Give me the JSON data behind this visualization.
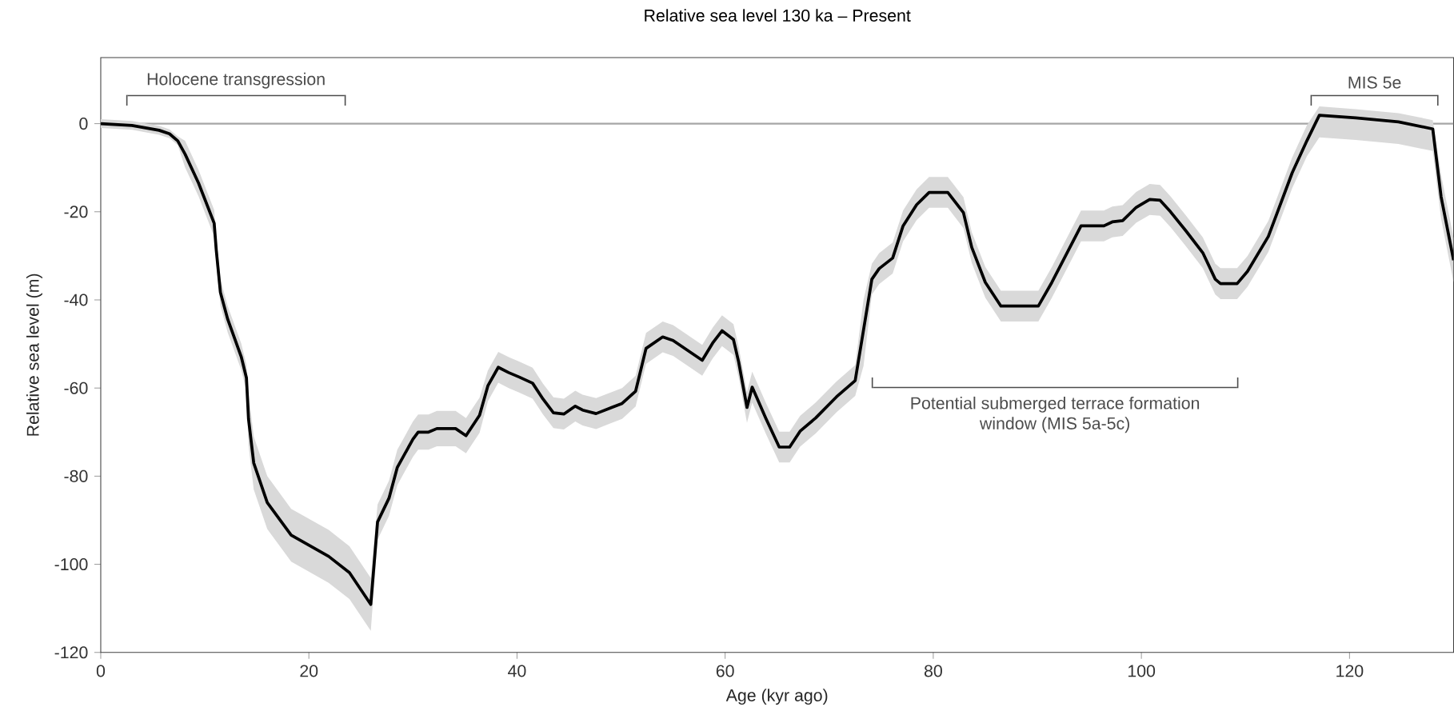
{
  "chart_data": {
    "type": "line",
    "title": "Relative sea level 130 ka – Present",
    "xlabel": "Age (kyr ago)",
    "ylabel": "Relative sea level (m)",
    "xlim": [
      0,
      130
    ],
    "ylim": [
      -120,
      15
    ],
    "xticks": [
      0,
      20,
      40,
      60,
      80,
      100,
      120
    ],
    "yticks": [
      -120,
      -100,
      -80,
      -60,
      -40,
      -20,
      0
    ],
    "x": [
      0,
      3,
      5.6,
      6.6,
      7.4,
      8.1,
      9.4,
      10.9,
      11.1,
      11.5,
      12.2,
      13.5,
      14,
      14.2,
      14.7,
      16,
      18.3,
      21.9,
      23.9,
      25.95,
      26.6,
      27.7,
      28.5,
      30,
      30.5,
      31.5,
      32.3,
      34.1,
      35.1,
      36.4,
      37.2,
      38.2,
      39.2,
      40.2,
      41.5,
      42.5,
      43.5,
      44.5,
      45.6,
      46.3,
      47.6,
      48.9,
      50.1,
      51.4,
      52.4,
      54,
      55,
      57.8,
      58.8,
      59.7,
      60.8,
      61.3,
      62.1,
      62.6,
      63.9,
      65.2,
      66.2,
      67.2,
      68.7,
      70.7,
      72.5,
      73.3,
      74.1,
      74.8,
      76.1,
      77.1,
      78.4,
      79.6,
      81.4,
      82.9,
      83.7,
      85,
      86.5,
      90.1,
      91.4,
      94.2,
      96.4,
      97.2,
      98.2,
      99.5,
      100.8,
      101.8,
      102.8,
      104.3,
      105.9,
      107.1,
      107.6,
      109.2,
      110.2,
      112.2,
      114.5,
      115.9,
      117.1,
      120.6,
      124.7,
      128,
      128.8,
      130
    ],
    "series": [
      {
        "color": "#000000",
        "values": [
          0,
          -0.4,
          -1.5,
          -2.3,
          -3.9,
          -6.9,
          -13.5,
          -22.6,
          -28.7,
          -38.3,
          -44.4,
          -52.9,
          -57.7,
          -67,
          -77,
          -86,
          -93.4,
          -98.2,
          -101.9,
          -109.1,
          -90.4,
          -85,
          -78,
          -71.6,
          -70,
          -70,
          -69.2,
          -69.2,
          -70.8,
          -66.2,
          -59.5,
          -55.3,
          -56.5,
          -57.5,
          -58.9,
          -62.5,
          -65.6,
          -65.9,
          -64.1,
          -65,
          -65.8,
          -64.6,
          -63.5,
          -60.7,
          -51,
          -48.4,
          -49.2,
          -53.7,
          -49.8,
          -47,
          -49,
          -54.1,
          -64.4,
          -59.8,
          -66.8,
          -73.4,
          -73.4,
          -69.8,
          -66.8,
          -62,
          -58.3,
          -46.8,
          -35.3,
          -32.9,
          -30.5,
          -23.2,
          -18.4,
          -15.6,
          -15.6,
          -20.2,
          -28.1,
          -36,
          -41.4,
          -41.4,
          -36,
          -23.2,
          -23.2,
          -22.3,
          -22,
          -19,
          -17.2,
          -17.4,
          -20,
          -24.4,
          -29.3,
          -35.3,
          -36.3,
          -36.3,
          -33.5,
          -25.6,
          -11.1,
          -3.9,
          1.9,
          1.3,
          0.4,
          -1.2,
          -16.6,
          -31
        ],
        "upper": [
          1,
          0.6,
          -0.5,
          -1.3,
          -2.9,
          -3.9,
          -10.5,
          -19.6,
          -25.7,
          -35.3,
          -41.4,
          -49.9,
          -54.7,
          -61,
          -71,
          -80,
          -87.4,
          -92.2,
          -95.9,
          -103.1,
          -86.4,
          -81,
          -74,
          -67.6,
          -66,
          -66,
          -65.2,
          -65.2,
          -66.8,
          -62.2,
          -56,
          -51.8,
          -53,
          -54,
          -55.4,
          -59,
          -62.1,
          -62.4,
          -60.6,
          -61.5,
          -62.3,
          -61.1,
          -60,
          -57.2,
          -47.5,
          -44.9,
          -45.7,
          -50.2,
          -46.3,
          -43.5,
          -45.5,
          -50.6,
          -60.9,
          -56.3,
          -63.3,
          -69.9,
          -69.9,
          -66.3,
          -63.3,
          -58.5,
          -54.8,
          -40,
          -31.8,
          -29.4,
          -27,
          -19.7,
          -14.9,
          -12.1,
          -12.1,
          -16.7,
          -24.6,
          -32.5,
          -37.9,
          -37.9,
          -32.5,
          -19.7,
          -19.7,
          -18.8,
          -18.5,
          -15.5,
          -13.7,
          -13.9,
          -16.5,
          -20.9,
          -25.8,
          -31.8,
          -32.8,
          -32.8,
          -30,
          -22.1,
          -7.6,
          -0.4,
          3.9,
          3.3,
          2.4,
          0.8,
          -11.6,
          -26
        ],
        "lower": [
          -1,
          -1.4,
          -2.5,
          -3.3,
          -4.9,
          -9.9,
          -16.5,
          -25.6,
          -31.7,
          -41.3,
          -47.4,
          -55.9,
          -60.7,
          -73,
          -83,
          -92,
          -99.4,
          -104.2,
          -107.9,
          -115.1,
          -94.4,
          -89,
          -82,
          -75.6,
          -74,
          -74,
          -73.2,
          -73.2,
          -74.8,
          -70.2,
          -63,
          -58.8,
          -60,
          -61,
          -62.4,
          -66,
          -69.1,
          -69.4,
          -67.6,
          -68.5,
          -69.3,
          -68.1,
          -67,
          -64.2,
          -54.5,
          -51.9,
          -52.7,
          -57.2,
          -53.3,
          -50.5,
          -52.5,
          -57.6,
          -67.9,
          -63.3,
          -70.3,
          -76.9,
          -76.9,
          -73.3,
          -70.3,
          -65.5,
          -61.8,
          -55,
          -38.8,
          -36.4,
          -34,
          -26.7,
          -21.9,
          -19.1,
          -19.1,
          -23.7,
          -31.6,
          -39.5,
          -44.9,
          -44.9,
          -39.5,
          -26.7,
          -26.7,
          -25.8,
          -25.5,
          -22.5,
          -20.7,
          -20.9,
          -23.5,
          -27.9,
          -32.8,
          -38.8,
          -39.8,
          -39.8,
          -37,
          -29.1,
          -14.6,
          -7.4,
          -3.1,
          -3.7,
          -4.6,
          -6.2,
          -21.6,
          -36
        ]
      }
    ],
    "ref_lines": [
      {
        "axis": "y",
        "value": 0,
        "color": "#a6a6a6"
      }
    ],
    "annotations": [
      "Holocene transgression",
      "Potential submerged terrace formation window (MIS 5a-5c)",
      "MIS 5e"
    ]
  }
}
